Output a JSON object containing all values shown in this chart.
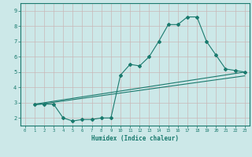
{
  "title": "",
  "xlabel": "Humidex (Indice chaleur)",
  "ylabel": "",
  "xlim": [
    -0.5,
    23.5
  ],
  "ylim": [
    1.5,
    9.5
  ],
  "xticks": [
    0,
    1,
    2,
    3,
    4,
    5,
    6,
    7,
    8,
    9,
    10,
    11,
    12,
    13,
    14,
    15,
    16,
    17,
    18,
    19,
    20,
    21,
    22,
    23
  ],
  "yticks": [
    2,
    3,
    4,
    5,
    6,
    7,
    8,
    9
  ],
  "bg_color": "#cce8e8",
  "line_color": "#1a7a6e",
  "line1_x": [
    1,
    2,
    3,
    4,
    5,
    6,
    7,
    8,
    9,
    10,
    11,
    12,
    13,
    14,
    15,
    16,
    17,
    18,
    19,
    20,
    21,
    22,
    23
  ],
  "line1_y": [
    2.9,
    2.9,
    2.9,
    2.0,
    1.8,
    1.9,
    1.9,
    2.0,
    2.0,
    4.8,
    5.5,
    5.4,
    6.0,
    7.0,
    8.1,
    8.1,
    8.6,
    8.6,
    7.0,
    6.1,
    5.2,
    5.1,
    5.0
  ],
  "line2_x": [
    1,
    23
  ],
  "line2_y": [
    2.9,
    5.0
  ],
  "line3_x": [
    1,
    23
  ],
  "line3_y": [
    2.85,
    4.75
  ]
}
